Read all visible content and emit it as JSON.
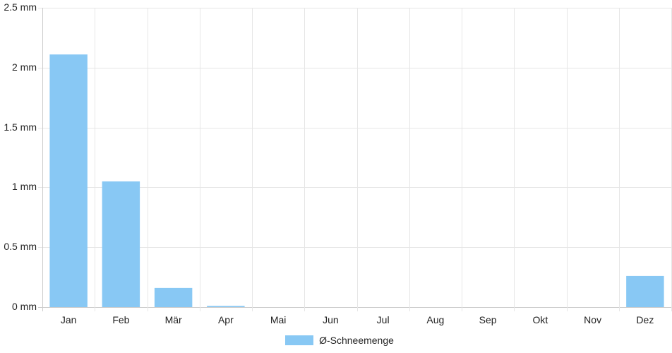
{
  "chart_data": {
    "type": "bar",
    "categories": [
      "Jan",
      "Feb",
      "Mär",
      "Apr",
      "Mai",
      "Jun",
      "Jul",
      "Aug",
      "Sep",
      "Okt",
      "Nov",
      "Dez"
    ],
    "series": [
      {
        "name": "Ø-Schneemenge",
        "values": [
          2.11,
          1.05,
          0.16,
          0.01,
          0,
          0,
          0,
          0,
          0,
          0,
          0,
          0.26
        ],
        "color": "#88c8f4"
      }
    ],
    "ylim": [
      0,
      2.5
    ],
    "y_ticks": [
      0,
      0.5,
      1,
      1.5,
      2,
      2.5
    ],
    "y_tick_labels": [
      "0 mm",
      "0.5 mm",
      "1 mm",
      "1.5 mm",
      "2 mm",
      "2.5 mm"
    ],
    "grid": true,
    "legend_position": "bottom-center",
    "grid_color": "#e6e6e6",
    "axis_color": "#cccccc"
  },
  "legend": {
    "label": "Ø-Schneemenge"
  }
}
